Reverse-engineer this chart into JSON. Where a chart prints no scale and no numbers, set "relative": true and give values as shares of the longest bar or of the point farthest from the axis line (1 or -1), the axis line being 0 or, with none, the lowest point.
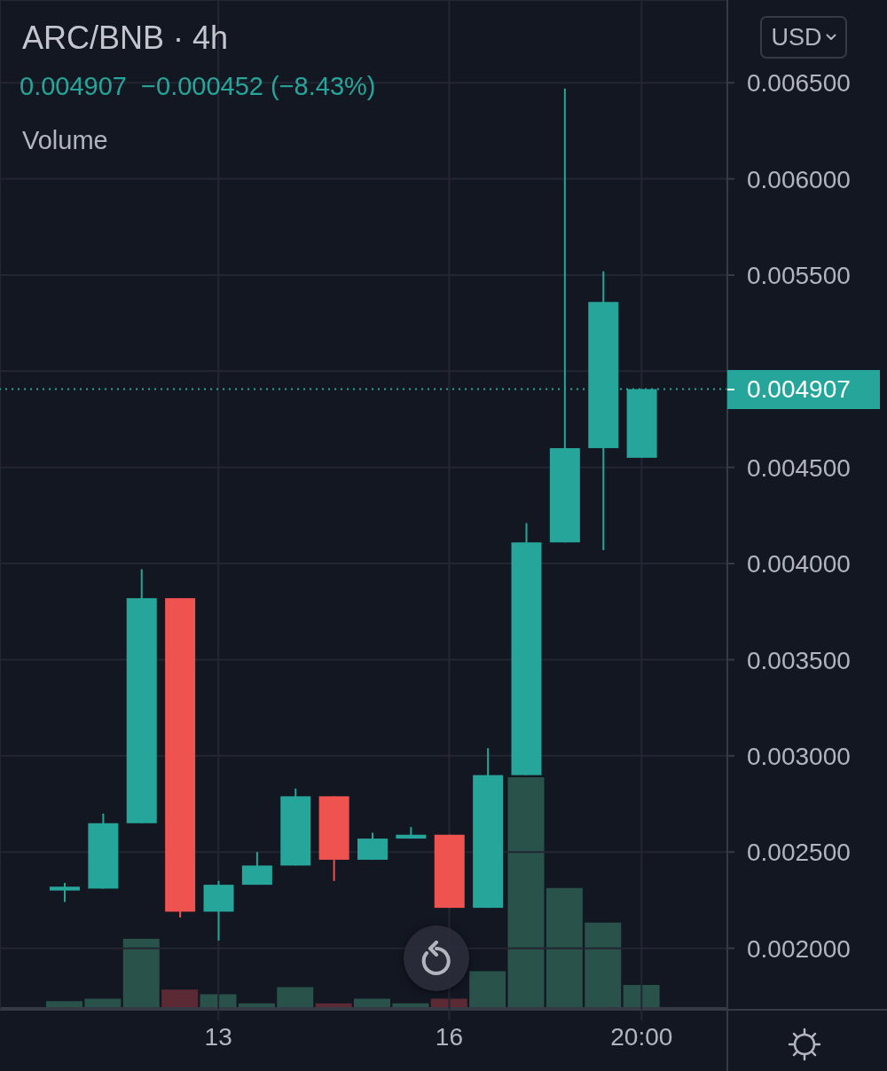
{
  "chart_data": [
    {
      "type": "candlestick",
      "title": "ARC/BNB · 4h",
      "subtitle": "0.004907  −0.000452 (−8.43%)",
      "ylabel": "USD",
      "categories": [
        null,
        null,
        null,
        null,
        "13",
        null,
        null,
        null,
        null,
        null,
        "16",
        null,
        null,
        null,
        null,
        "20:00"
      ],
      "ohlc": [
        [
          0.0023,
          0.00234,
          0.00224,
          0.00232
        ],
        [
          0.00231,
          0.0027,
          0.00231,
          0.00265
        ],
        [
          0.00265,
          0.00397,
          0.00265,
          0.00382
        ],
        [
          0.00382,
          0.00382,
          0.00216,
          0.00219
        ],
        [
          0.00219,
          0.00235,
          0.00204,
          0.00233
        ],
        [
          0.00233,
          0.0025,
          0.00233,
          0.00243
        ],
        [
          0.00243,
          0.00283,
          0.00243,
          0.00279
        ],
        [
          0.00279,
          0.00279,
          0.00235,
          0.00246
        ],
        [
          0.00246,
          0.0026,
          0.00246,
          0.00257
        ],
        [
          0.00257,
          0.00263,
          0.00257,
          0.00259
        ],
        [
          0.00259,
          0.00259,
          0.00221,
          0.00221
        ],
        [
          0.00221,
          0.00304,
          0.00221,
          0.0029
        ],
        [
          0.0029,
          0.00421,
          0.0029,
          0.00411
        ],
        [
          0.00411,
          0.00647,
          0.00411,
          0.0046
        ],
        [
          0.0046,
          0.00552,
          0.00407,
          0.00536
        ],
        [
          0.00455,
          0.004907,
          0.00455,
          0.004907
        ]
      ],
      "colors": [
        "#26a69a",
        "#26a69a",
        "#26a69a",
        "#ef5350",
        "#26a69a",
        "#26a69a",
        "#26a69a",
        "#ef5350",
        "#26a69a",
        "#26a69a",
        "#ef5350",
        "#26a69a",
        "#26a69a",
        "#26a69a",
        "#26a69a",
        "#26a69a"
      ],
      "ylim": [
        0.00168,
        0.00693
      ],
      "yticks": [
        {
          "value": 0.002,
          "label": "0.002000"
        },
        {
          "value": 0.0025,
          "label": "0.002500"
        },
        {
          "value": 0.003,
          "label": "0.003000"
        },
        {
          "value": 0.0035,
          "label": "0.003500"
        },
        {
          "value": 0.004,
          "label": "0.004000"
        },
        {
          "value": 0.0045,
          "label": "0.004500"
        },
        {
          "value": 0.005,
          "label": null
        },
        {
          "value": 0.0055,
          "label": "0.005500"
        },
        {
          "value": 0.006,
          "label": "0.006000"
        },
        {
          "value": 0.0065,
          "label": "0.006500"
        }
      ],
      "grid": true,
      "ref_lines": [
        {
          "axis": "y",
          "value": 0.004907,
          "label": "0.004907",
          "color": "#26a69a",
          "line_style": "dotted"
        }
      ]
    },
    {
      "type": "bar",
      "title": "Volume",
      "relative": true,
      "categories": [
        null,
        null,
        null,
        null,
        null,
        null,
        null,
        null,
        null,
        null,
        null,
        null,
        null,
        null,
        null,
        null
      ],
      "values": [
        0.03,
        0.04,
        0.3,
        0.08,
        0.06,
        0.02,
        0.09,
        0.02,
        0.04,
        0.02,
        0.04,
        0.16,
        1,
        0.52,
        0.37,
        0.1
      ],
      "colors": [
        "#28524a",
        "#28524a",
        "#28524a",
        "#5b2a35",
        "#28524a",
        "#28524a",
        "#28524a",
        "#5b2a35",
        "#28524a",
        "#28524a",
        "#5b2a35",
        "#28524a",
        "#28524a",
        "#28524a",
        "#28524a",
        "#28524a"
      ],
      "tick_labels": false
    }
  ]
}
